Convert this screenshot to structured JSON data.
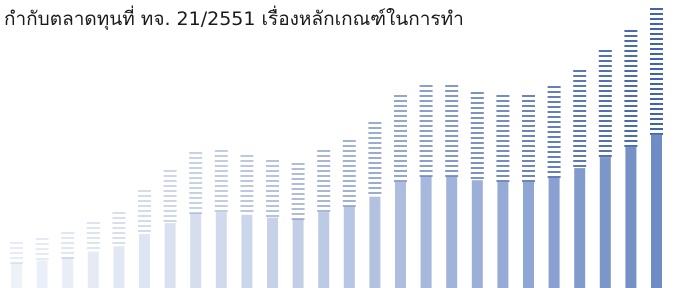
{
  "document": {
    "text": "กำกับตลาดทุนที่ ทจ. 21/2551 เรื่องหลักเกณฑ์ในการทำ"
  }
}
